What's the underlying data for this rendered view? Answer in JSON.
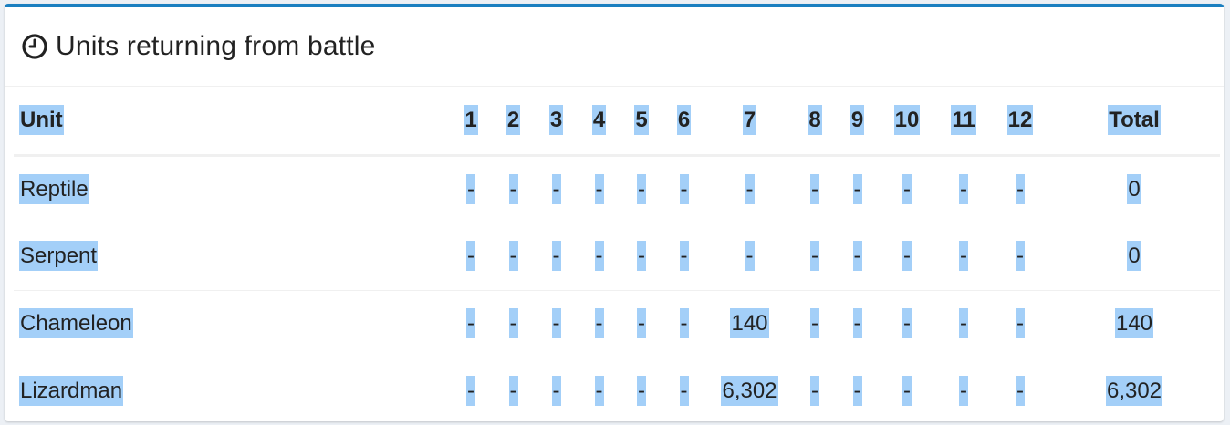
{
  "panel": {
    "title": "Units returning from battle",
    "icon": "clock-icon",
    "accent_color": "#1a7fc0",
    "selection_color": "#a3cff8"
  },
  "table": {
    "headers": [
      "Unit",
      "1",
      "2",
      "3",
      "4",
      "5",
      "6",
      "7",
      "8",
      "9",
      "10",
      "11",
      "12",
      "Total"
    ],
    "rows": [
      {
        "unit": "Reptile",
        "cells": [
          "-",
          "-",
          "-",
          "-",
          "-",
          "-",
          "-",
          "-",
          "-",
          "-",
          "-",
          "-"
        ],
        "total": "0"
      },
      {
        "unit": "Serpent",
        "cells": [
          "-",
          "-",
          "-",
          "-",
          "-",
          "-",
          "-",
          "-",
          "-",
          "-",
          "-",
          "-"
        ],
        "total": "0"
      },
      {
        "unit": "Chameleon",
        "cells": [
          "-",
          "-",
          "-",
          "-",
          "-",
          "-",
          "140",
          "-",
          "-",
          "-",
          "-",
          "-"
        ],
        "total": "140"
      },
      {
        "unit": "Lizardman",
        "cells": [
          "-",
          "-",
          "-",
          "-",
          "-",
          "-",
          "6,302",
          "-",
          "-",
          "-",
          "-",
          "-"
        ],
        "total": "6,302"
      }
    ]
  }
}
